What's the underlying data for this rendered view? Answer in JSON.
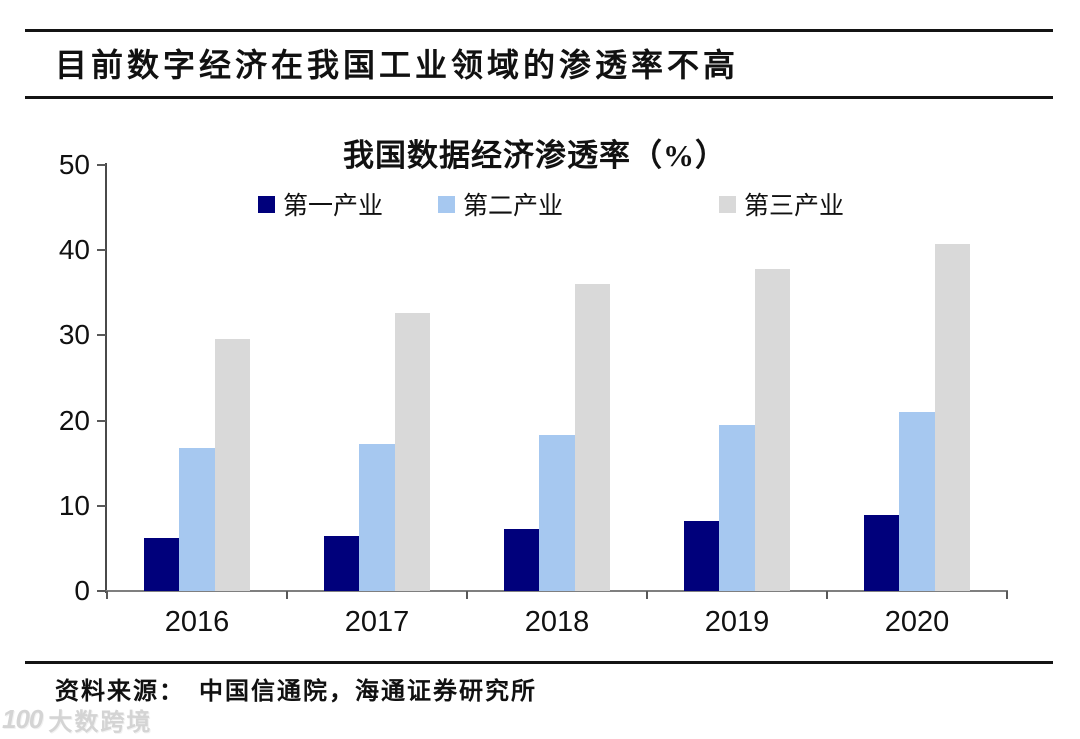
{
  "header": {
    "title": "目前数字经济在我国工业领域的渗透率不高"
  },
  "chart_data": {
    "type": "bar",
    "title": "我国数据经济渗透率（%）",
    "categories": [
      "2016",
      "2017",
      "2018",
      "2019",
      "2020"
    ],
    "series": [
      {
        "name": "第一产业",
        "color": "#00007B",
        "values": [
          6.2,
          6.5,
          7.3,
          8.2,
          8.9
        ]
      },
      {
        "name": "第二产业",
        "color": "#A6C8F0",
        "values": [
          16.8,
          17.2,
          18.3,
          19.5,
          21.0
        ]
      },
      {
        "name": "第三产业",
        "color": "#D9D9D9",
        "values": [
          29.6,
          32.6,
          36.0,
          37.8,
          40.7
        ]
      }
    ],
    "ylim": [
      0,
      50
    ],
    "yticks": [
      0,
      10,
      20,
      30,
      40,
      50
    ],
    "grid": false,
    "legend_position": "top-center",
    "axis_color": "#595959"
  },
  "footer": {
    "source": "资料来源：　中国信通院，海通证券研究所"
  },
  "watermark": {
    "logo": "100",
    "text": "大数跨境"
  }
}
